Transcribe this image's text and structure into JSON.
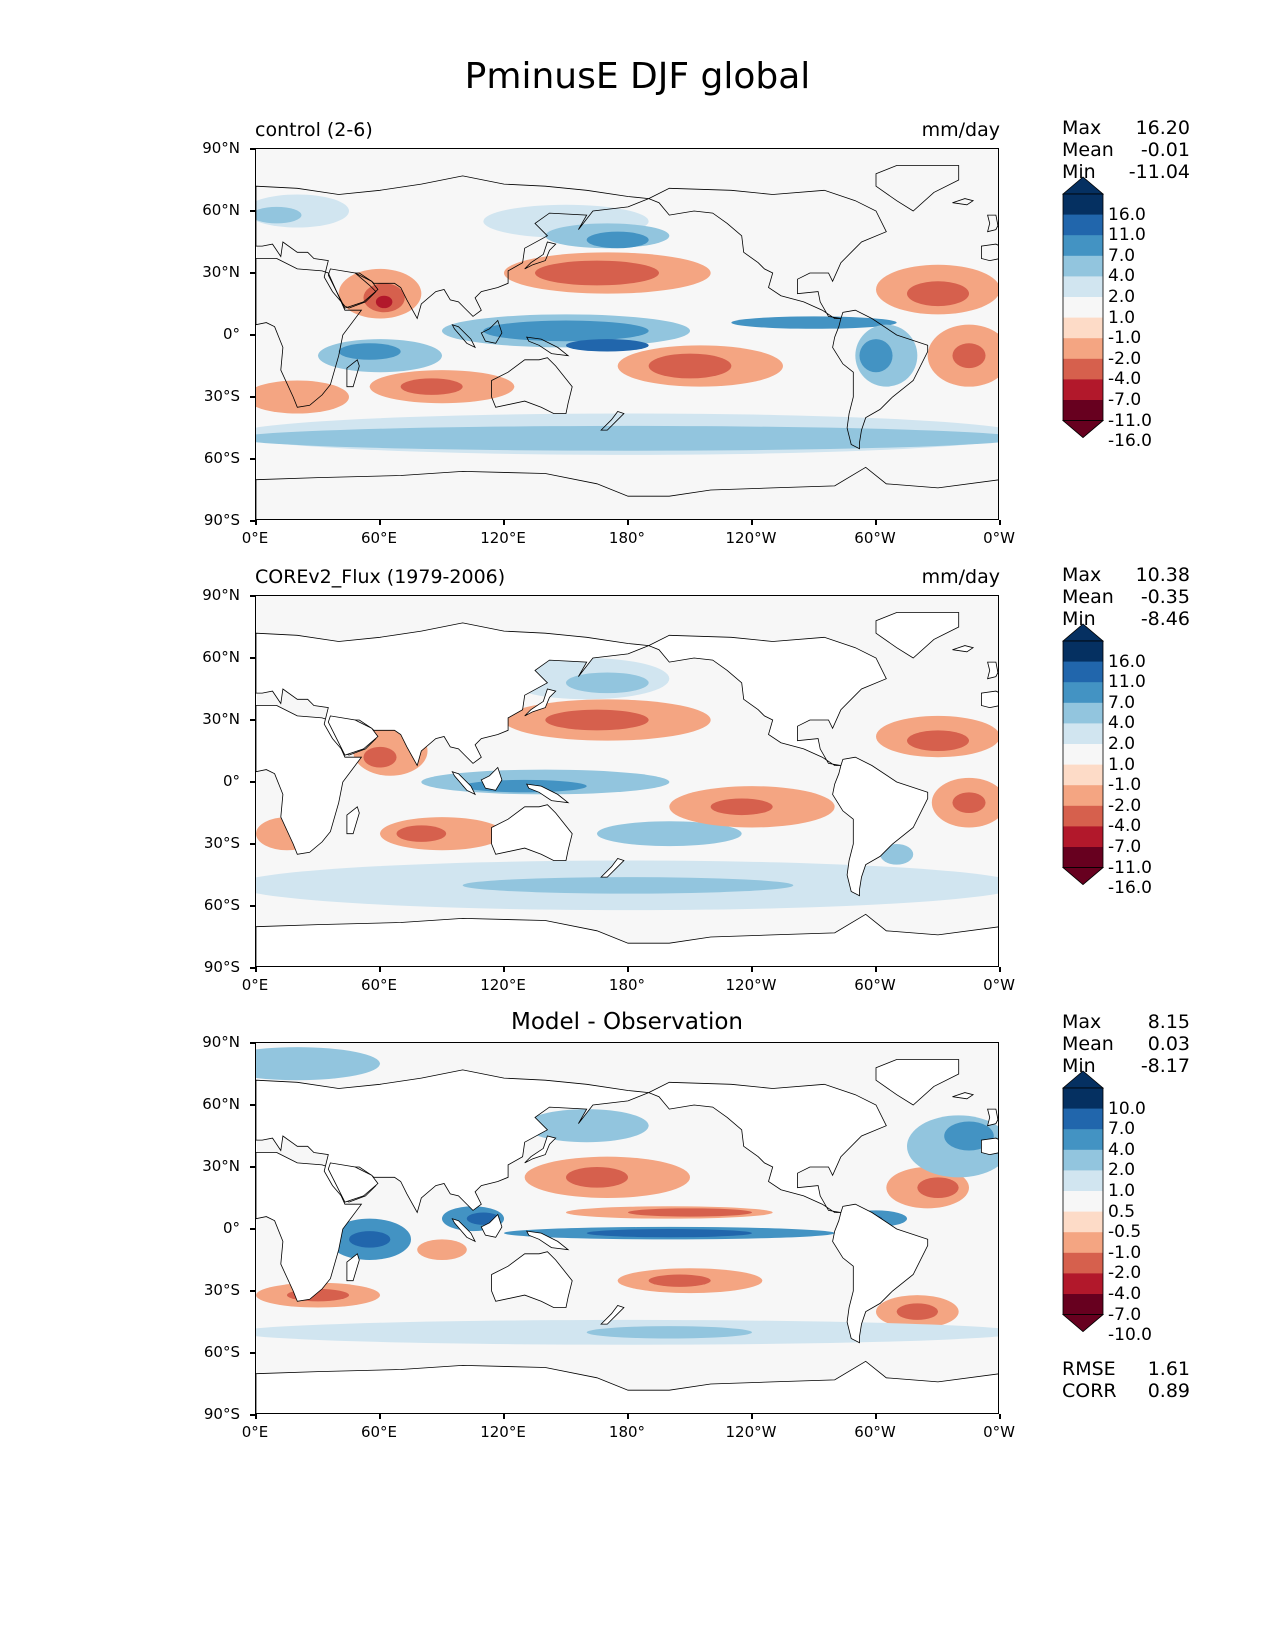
{
  "suptitle": "PminusE DJF global",
  "axes": {
    "yticks": [
      "90°N",
      "60°N",
      "30°N",
      "0°",
      "30°S",
      "60°S",
      "90°S"
    ],
    "xticks": [
      "0°E",
      "60°E",
      "120°E",
      "180°",
      "120°W",
      "60°W",
      "0°W"
    ]
  },
  "panels": [
    {
      "title_left": "control (2-6)",
      "title_right": "mm/day",
      "title_center": "",
      "stats": [
        {
          "label": "Max",
          "value": "16.20"
        },
        {
          "label": "Mean",
          "value": "-0.01"
        },
        {
          "label": "Min",
          "value": "-11.04"
        }
      ],
      "colorbar_labels": [
        "16.0",
        "11.0",
        "7.0",
        "4.0",
        "2.0",
        "1.0",
        "-1.0",
        "-2.0",
        "-4.0",
        "-7.0",
        "-11.0",
        "-16.0"
      ],
      "extra_stats": []
    },
    {
      "title_left": "COREv2_Flux (1979-2006)",
      "title_right": "mm/day",
      "title_center": "",
      "stats": [
        {
          "label": "Max",
          "value": "10.38"
        },
        {
          "label": "Mean",
          "value": "-0.35"
        },
        {
          "label": "Min",
          "value": "-8.46"
        }
      ],
      "colorbar_labels": [
        "16.0",
        "11.0",
        "7.0",
        "4.0",
        "2.0",
        "1.0",
        "-1.0",
        "-2.0",
        "-4.0",
        "-7.0",
        "-11.0",
        "-16.0"
      ],
      "extra_stats": []
    },
    {
      "title_left": "",
      "title_right": "",
      "title_center": "Model - Observation",
      "stats": [
        {
          "label": "Max",
          "value": "8.15"
        },
        {
          "label": "Mean",
          "value": "0.03"
        },
        {
          "label": "Min",
          "value": "-8.17"
        }
      ],
      "colorbar_labels": [
        "10.0",
        "7.0",
        "4.0",
        "2.0",
        "1.0",
        "0.5",
        "-0.5",
        "-1.0",
        "-2.0",
        "-4.0",
        "-7.0",
        "-10.0"
      ],
      "extra_stats": [
        {
          "label": "RMSE",
          "value": "1.61"
        },
        {
          "label": "CORR",
          "value": "0.89"
        }
      ]
    }
  ],
  "colors": {
    "cmap": [
      "#053061",
      "#2166ac",
      "#4393c3",
      "#92c5de",
      "#d1e5f0",
      "#f7f7f7",
      "#fddbc7",
      "#f4a582",
      "#d6604d",
      "#b2182b",
      "#67001f"
    ],
    "land": "#ffffff",
    "ocean_neutral": "#f7f7f7"
  }
}
